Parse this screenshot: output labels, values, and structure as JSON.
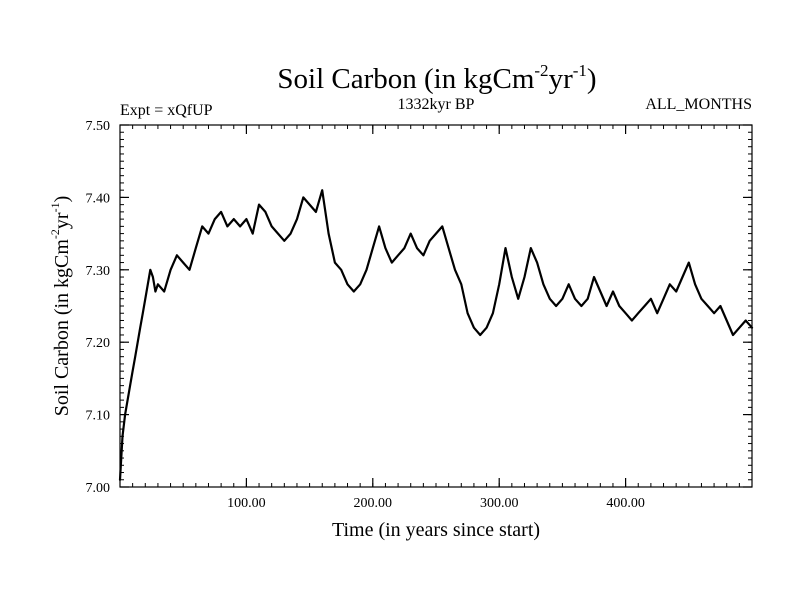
{
  "chart_data": {
    "type": "line",
    "title": {
      "main": "Soil Carbon (in kgCm",
      "sup1": "-2",
      "mid": "yr",
      "sup2": "-1",
      "end": ")"
    },
    "subtitle_left": "Expt = xQfUP",
    "subtitle_center": "1332kyr BP",
    "subtitle_right": "ALL_MONTHS",
    "xlabel": "Time (in years since start)",
    "ylabel": {
      "main": "Soil Carbon (in kgCm",
      "sup1": "-2",
      "mid": "yr",
      "sup2": "-1",
      "end": ")"
    },
    "xlim": [
      0,
      500
    ],
    "ylim": [
      7.0,
      7.5
    ],
    "x_ticks": [
      {
        "value": 100,
        "label": "100.00"
      },
      {
        "value": 200,
        "label": "200.00"
      },
      {
        "value": 300,
        "label": "300.00"
      },
      {
        "value": 400,
        "label": "400.00"
      }
    ],
    "y_ticks": [
      {
        "value": 7.0,
        "label": "7.00"
      },
      {
        "value": 7.1,
        "label": "7.10"
      },
      {
        "value": 7.2,
        "label": "7.20"
      },
      {
        "value": 7.3,
        "label": "7.30"
      },
      {
        "value": 7.4,
        "label": "7.40"
      },
      {
        "value": 7.5,
        "label": "7.50"
      }
    ],
    "x_minor_step": 10,
    "y_minor_step": 0.01,
    "grid": false,
    "line_color": "#000000",
    "series": [
      {
        "name": "Soil Carbon",
        "x": [
          0,
          2,
          4,
          6,
          8,
          10,
          12,
          14,
          16,
          18,
          20,
          22,
          24,
          26,
          28,
          30,
          35,
          40,
          45,
          50,
          55,
          60,
          65,
          70,
          75,
          80,
          85,
          90,
          95,
          100,
          105,
          110,
          115,
          120,
          125,
          130,
          135,
          140,
          145,
          150,
          155,
          160,
          165,
          170,
          175,
          180,
          185,
          190,
          195,
          200,
          205,
          210,
          215,
          220,
          225,
          230,
          235,
          240,
          245,
          250,
          255,
          260,
          265,
          270,
          275,
          280,
          285,
          290,
          295,
          300,
          305,
          310,
          315,
          320,
          325,
          330,
          335,
          340,
          345,
          350,
          355,
          360,
          365,
          370,
          375,
          380,
          385,
          390,
          395,
          400,
          405,
          410,
          415,
          420,
          425,
          430,
          435,
          440,
          445,
          450,
          455,
          460,
          465,
          470,
          475,
          480,
          485,
          490,
          495,
          500
        ],
        "y": [
          7.01,
          7.07,
          7.1,
          7.12,
          7.14,
          7.16,
          7.18,
          7.2,
          7.22,
          7.24,
          7.26,
          7.28,
          7.3,
          7.29,
          7.27,
          7.28,
          7.27,
          7.3,
          7.32,
          7.31,
          7.3,
          7.33,
          7.36,
          7.35,
          7.37,
          7.38,
          7.36,
          7.37,
          7.36,
          7.37,
          7.35,
          7.39,
          7.38,
          7.36,
          7.35,
          7.34,
          7.35,
          7.37,
          7.4,
          7.39,
          7.38,
          7.41,
          7.35,
          7.31,
          7.3,
          7.28,
          7.27,
          7.28,
          7.3,
          7.33,
          7.36,
          7.33,
          7.31,
          7.32,
          7.33,
          7.35,
          7.33,
          7.32,
          7.34,
          7.35,
          7.36,
          7.33,
          7.3,
          7.28,
          7.24,
          7.22,
          7.21,
          7.22,
          7.24,
          7.28,
          7.33,
          7.29,
          7.26,
          7.29,
          7.33,
          7.31,
          7.28,
          7.26,
          7.25,
          7.26,
          7.28,
          7.26,
          7.25,
          7.26,
          7.29,
          7.27,
          7.25,
          7.27,
          7.25,
          7.24,
          7.23,
          7.24,
          7.25,
          7.26,
          7.24,
          7.26,
          7.28,
          7.27,
          7.29,
          7.31,
          7.28,
          7.26,
          7.25,
          7.24,
          7.25,
          7.23,
          7.21,
          7.22,
          7.23,
          7.22
        ]
      }
    ]
  }
}
